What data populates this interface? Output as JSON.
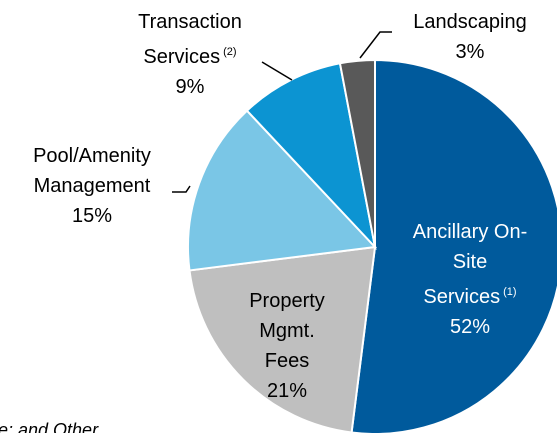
{
  "chart_data": {
    "type": "pie",
    "categories": [
      "Ancillary On-Site Services",
      "Property Mgmt. Fees",
      "Pool/Amenity Management",
      "Transaction Services",
      "Landscaping"
    ],
    "values": [
      52,
      21,
      15,
      9,
      3
    ],
    "value_labels": [
      "52%",
      "21%",
      "15%",
      "9%",
      "3%"
    ],
    "colors": [
      "#005a9c",
      "#bfbfbf",
      "#7ac6e6",
      "#0c94d2",
      "#595959"
    ],
    "annotations": [
      "(1)",
      "(2)"
    ],
    "footnote": "e: and Other"
  }
}
